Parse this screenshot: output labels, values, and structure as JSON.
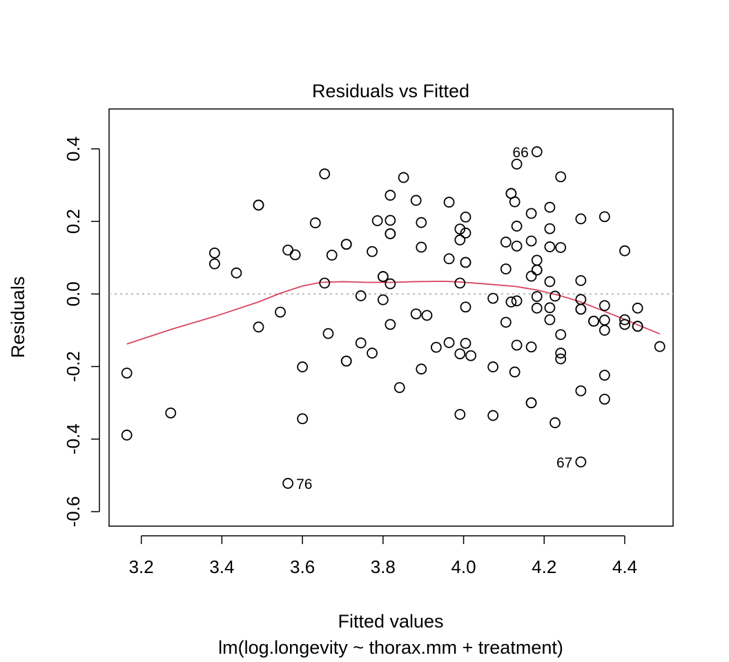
{
  "chart_data": {
    "type": "scatter",
    "title": "Residuals vs Fitted",
    "xlabel": "Fitted values",
    "subtitle": "lm(log.longevity ~ thorax.mm + treatment)",
    "ylabel": "Residuals",
    "xlim": [
      3.12,
      4.52
    ],
    "ylim": [
      -0.64,
      0.51
    ],
    "xticks": [
      3.2,
      3.4,
      3.6,
      3.8,
      4.0,
      4.2,
      4.4
    ],
    "xtick_labels": [
      "3.2",
      "3.4",
      "3.6",
      "3.8",
      "4.0",
      "4.2",
      "4.4"
    ],
    "yticks": [
      -0.6,
      -0.4,
      -0.2,
      0.0,
      0.2,
      0.4
    ],
    "ytick_labels": [
      "-0.6",
      "-0.4",
      "-0.2",
      "0.0",
      "0.2",
      "0.4"
    ],
    "grid": false,
    "legend": "none",
    "zero_line_color": "#aaaaaa",
    "smooth_color": "#d6455f",
    "points": [
      [
        3.164,
        -0.218
      ],
      [
        3.164,
        -0.389
      ],
      [
        3.273,
        -0.328
      ],
      [
        3.382,
        0.113
      ],
      [
        3.382,
        0.083
      ],
      [
        3.436,
        0.058
      ],
      [
        3.491,
        0.245
      ],
      [
        3.491,
        0.245
      ],
      [
        3.491,
        -0.091
      ],
      [
        3.545,
        -0.05
      ],
      [
        3.564,
        0.121
      ],
      [
        3.564,
        -0.522
      ],
      [
        3.582,
        0.108
      ],
      [
        3.6,
        -0.201
      ],
      [
        3.6,
        -0.344
      ],
      [
        3.632,
        0.196
      ],
      [
        3.655,
        0.331
      ],
      [
        3.655,
        0.03
      ],
      [
        3.664,
        -0.109
      ],
      [
        3.673,
        0.107
      ],
      [
        3.709,
        0.137
      ],
      [
        3.709,
        0.137
      ],
      [
        3.709,
        -0.185
      ],
      [
        3.709,
        -0.185
      ],
      [
        3.745,
        -0.005
      ],
      [
        3.745,
        -0.135
      ],
      [
        3.773,
        0.117
      ],
      [
        3.773,
        -0.163
      ],
      [
        3.786,
        0.202
      ],
      [
        3.8,
        0.048
      ],
      [
        3.8,
        0.048
      ],
      [
        3.8,
        -0.016
      ],
      [
        3.818,
        0.272
      ],
      [
        3.818,
        0.203
      ],
      [
        3.818,
        0.166
      ],
      [
        3.818,
        0.166
      ],
      [
        3.818,
        0.028
      ],
      [
        3.818,
        -0.084
      ],
      [
        3.841,
        -0.258
      ],
      [
        3.851,
        0.321
      ],
      [
        3.882,
        0.258
      ],
      [
        3.882,
        -0.055
      ],
      [
        3.895,
        0.197
      ],
      [
        3.895,
        0.129
      ],
      [
        3.895,
        -0.207
      ],
      [
        3.909,
        -0.059
      ],
      [
        3.932,
        -0.147
      ],
      [
        3.964,
        0.253
      ],
      [
        3.964,
        0.097
      ],
      [
        3.964,
        -0.134
      ],
      [
        3.991,
        0.179
      ],
      [
        3.991,
        0.149
      ],
      [
        3.991,
        0.03
      ],
      [
        3.991,
        -0.165
      ],
      [
        3.991,
        -0.332
      ],
      [
        4.005,
        0.212
      ],
      [
        4.005,
        0.168
      ],
      [
        4.005,
        0.087
      ],
      [
        4.005,
        0.087
      ],
      [
        4.005,
        -0.036
      ],
      [
        4.005,
        -0.136
      ],
      [
        4.018,
        -0.17
      ],
      [
        4.073,
        -0.012
      ],
      [
        4.073,
        -0.201
      ],
      [
        4.073,
        -0.335
      ],
      [
        4.105,
        0.143
      ],
      [
        4.105,
        0.069
      ],
      [
        4.105,
        -0.078
      ],
      [
        4.118,
        0.277
      ],
      [
        4.118,
        0.277
      ],
      [
        4.118,
        -0.022
      ],
      [
        4.127,
        0.254
      ],
      [
        4.127,
        -0.215
      ],
      [
        4.132,
        0.358
      ],
      [
        4.132,
        0.187
      ],
      [
        4.132,
        0.132
      ],
      [
        4.132,
        -0.019
      ],
      [
        4.132,
        -0.141
      ],
      [
        4.168,
        0.222
      ],
      [
        4.168,
        0.146
      ],
      [
        4.168,
        0.049
      ],
      [
        4.168,
        -0.146
      ],
      [
        4.168,
        -0.3
      ],
      [
        4.168,
        -0.3
      ],
      [
        4.182,
        0.392
      ],
      [
        4.182,
        0.093
      ],
      [
        4.182,
        0.066
      ],
      [
        4.182,
        0.066
      ],
      [
        4.182,
        -0.007
      ],
      [
        4.182,
        -0.039
      ],
      [
        4.214,
        0.239
      ],
      [
        4.214,
        0.18
      ],
      [
        4.214,
        0.13
      ],
      [
        4.214,
        0.034
      ],
      [
        4.214,
        -0.038
      ],
      [
        4.214,
        -0.071
      ],
      [
        4.227,
        -0.006
      ],
      [
        4.227,
        -0.355
      ],
      [
        4.241,
        0.323
      ],
      [
        4.241,
        0.128
      ],
      [
        4.241,
        -0.112
      ],
      [
        4.241,
        -0.163
      ],
      [
        4.241,
        -0.179
      ],
      [
        4.291,
        0.207
      ],
      [
        4.291,
        0.037
      ],
      [
        4.291,
        -0.015
      ],
      [
        4.291,
        -0.042
      ],
      [
        4.291,
        -0.042
      ],
      [
        4.291,
        -0.267
      ],
      [
        4.291,
        -0.463
      ],
      [
        4.323,
        -0.075
      ],
      [
        4.323,
        -0.075
      ],
      [
        4.35,
        0.213
      ],
      [
        4.35,
        -0.032
      ],
      [
        4.35,
        -0.072
      ],
      [
        4.35,
        -0.1
      ],
      [
        4.35,
        -0.224
      ],
      [
        4.35,
        -0.29
      ],
      [
        4.4,
        0.119
      ],
      [
        4.4,
        -0.071
      ],
      [
        4.4,
        -0.084
      ],
      [
        4.432,
        -0.039
      ],
      [
        4.432,
        -0.089
      ],
      [
        4.432,
        -0.089
      ],
      [
        4.487,
        -0.145
      ]
    ],
    "labels": [
      {
        "text": "66",
        "x": 4.182,
        "y": 0.392,
        "side": "left"
      },
      {
        "text": "76",
        "x": 3.564,
        "y": -0.522,
        "side": "right"
      },
      {
        "text": "67",
        "x": 4.291,
        "y": -0.463,
        "side": "left"
      }
    ],
    "smooth": [
      [
        3.164,
        -0.138
      ],
      [
        3.273,
        -0.098
      ],
      [
        3.382,
        -0.062
      ],
      [
        3.491,
        -0.022
      ],
      [
        3.545,
        0.002
      ],
      [
        3.6,
        0.022
      ],
      [
        3.645,
        0.032
      ],
      [
        3.7,
        0.034
      ],
      [
        3.76,
        0.032
      ],
      [
        3.818,
        0.032
      ],
      [
        3.88,
        0.034
      ],
      [
        3.95,
        0.035
      ],
      [
        3.991,
        0.033
      ],
      [
        4.05,
        0.028
      ],
      [
        4.127,
        0.021
      ],
      [
        4.182,
        0.011
      ],
      [
        4.241,
        -0.005
      ],
      [
        4.291,
        -0.022
      ],
      [
        4.35,
        -0.048
      ],
      [
        4.4,
        -0.07
      ],
      [
        4.432,
        -0.085
      ],
      [
        4.487,
        -0.11
      ]
    ]
  }
}
